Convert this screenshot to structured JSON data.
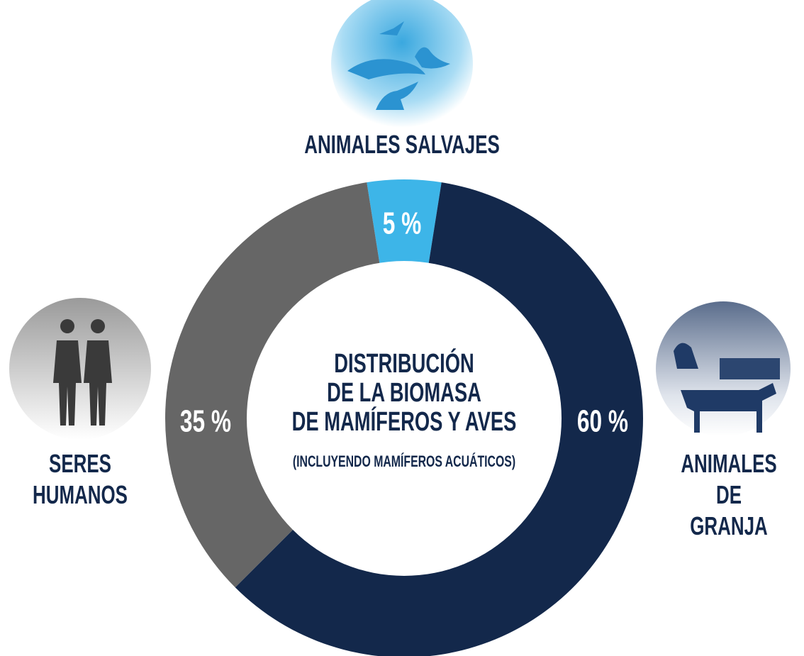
{
  "chart_data": {
    "type": "donut",
    "title": [
      "DISTRIBUCIÓN",
      "DE LA BIOMASA",
      "DE MAMÍFEROS Y AVES"
    ],
    "subtitle": "(INCLUYENDO MAMÍFEROS ACUÁTICOS)",
    "categories": [
      "ANIMALES SALVAJES",
      "ANIMALES DE GRANJA",
      "SERES HUMANOS"
    ],
    "values": [
      5,
      60,
      35
    ],
    "value_labels": [
      "5 %",
      "60 %",
      "35 %"
    ],
    "colors": [
      "#3db5e8",
      "#13284b",
      "#666666"
    ]
  }
}
